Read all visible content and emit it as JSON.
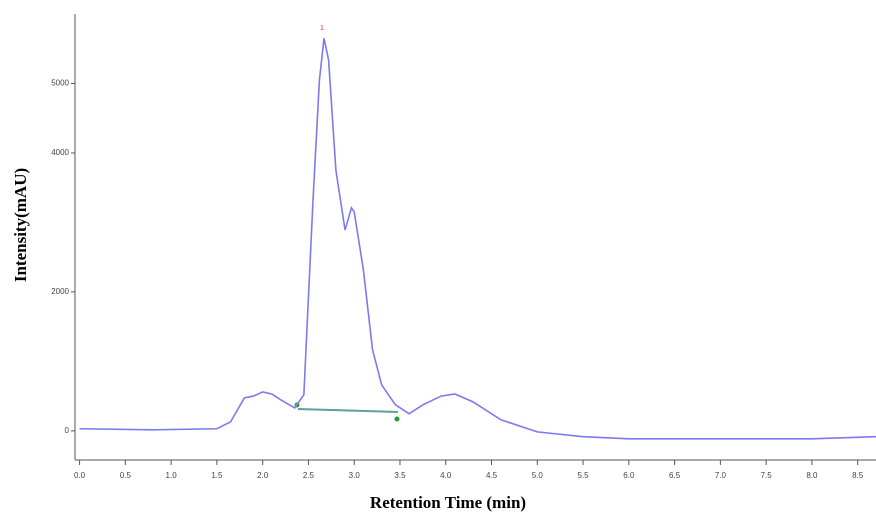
{
  "chart_data": {
    "type": "line",
    "xlabel": "Retention Time (min)",
    "ylabel": "Intensity(mAU)",
    "annotation": "1",
    "x": [
      0,
      0.8,
      1.5,
      1.65,
      1.8,
      1.9,
      2.0,
      2.1,
      2.2,
      2.35,
      2.45,
      2.55,
      2.62,
      2.67,
      2.72,
      2.8,
      2.9,
      2.97,
      3.0,
      3.1,
      3.2,
      3.3,
      3.45,
      3.6,
      3.75,
      3.95,
      4.1,
      4.3,
      4.6,
      5.0,
      5.5,
      6.0,
      7.0,
      8.0,
      8.7
    ],
    "series": [
      {
        "color": "#7b7bef",
        "values": [
          30,
          15,
          30,
          130,
          475,
          500,
          560,
          530,
          445,
          330,
          520,
          3320,
          5050,
          5650,
          5340,
          3750,
          2890,
          3210,
          3150,
          2320,
          1170,
          660,
          375,
          245,
          375,
          500,
          530,
          415,
          160,
          -15,
          -85,
          -115,
          -115,
          -115,
          -85
        ]
      }
    ],
    "xlim": [
      -0.05,
      8.7
    ],
    "ylim": [
      -420,
      6000
    ],
    "xticks": [
      {
        "value": 0,
        "label": "0.0"
      },
      0.5,
      {
        "value": 1,
        "label": "1.0"
      },
      1.5,
      {
        "value": 2,
        "label": "2.0"
      },
      2.5,
      {
        "value": 3,
        "label": "3.0"
      },
      3.5,
      {
        "value": 4,
        "label": "4.0"
      },
      4.5,
      {
        "value": 5,
        "label": "5.0"
      },
      5.5,
      {
        "value": 6,
        "label": "6.0"
      },
      6.5,
      {
        "value": 7,
        "label": "7.0"
      },
      7.5,
      {
        "value": 8,
        "label": "8.0"
      },
      8.5
    ],
    "yticks": [
      0,
      2000,
      4000,
      5000
    ]
  }
}
